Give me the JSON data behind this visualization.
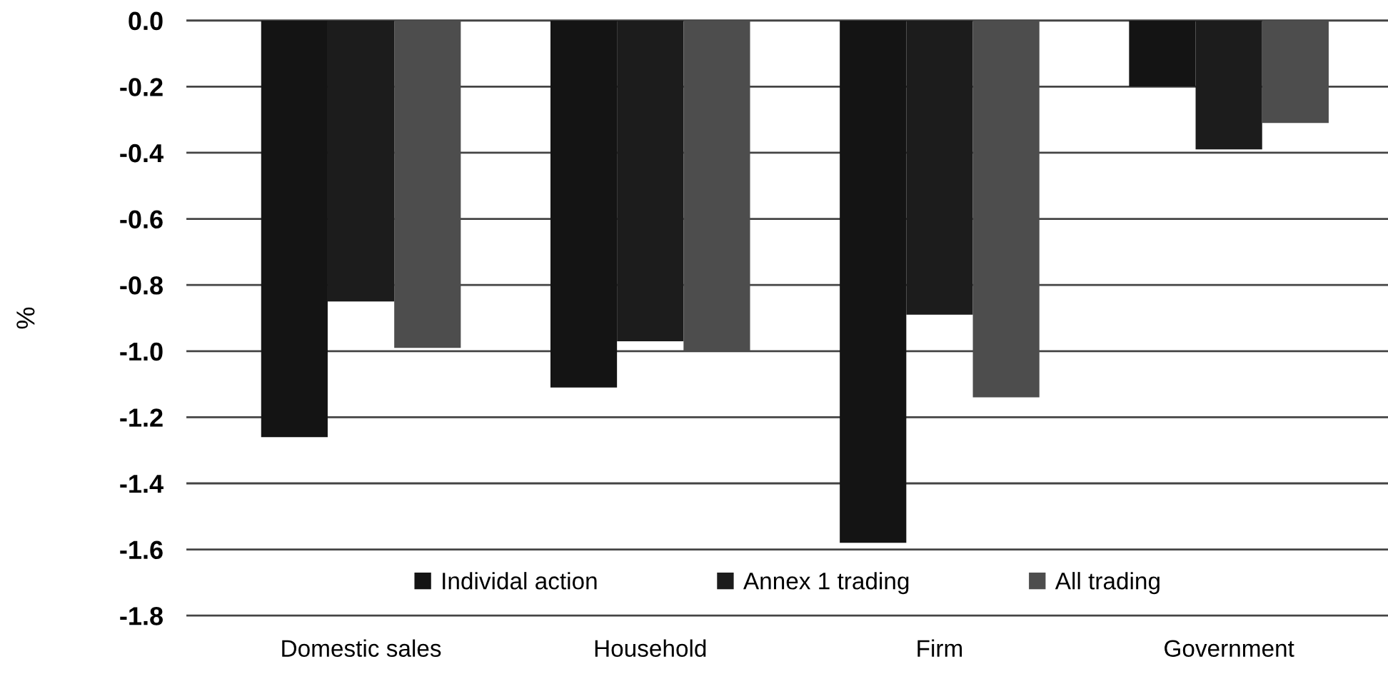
{
  "chart_data": {
    "type": "bar",
    "ylabel": "%",
    "categories": [
      "Domestic sales",
      "Household",
      "Firm",
      "Government"
    ],
    "series": [
      {
        "name": "Individal action",
        "color": "#141414",
        "values": [
          -1.26,
          -1.11,
          -1.58,
          -0.2
        ]
      },
      {
        "name": "Annex 1 trading",
        "color": "#1c1c1c",
        "values": [
          -0.85,
          -0.97,
          -0.89,
          -0.39
        ]
      },
      {
        "name": "All trading",
        "color": "#4d4d4d",
        "values": [
          -0.99,
          -1.0,
          -1.14,
          -0.31
        ]
      }
    ],
    "ylim": [
      -1.8,
      0.0
    ],
    "yticks": [
      {
        "value": 0,
        "label": "0.0"
      },
      -0.2,
      -0.4,
      -0.6,
      -0.8,
      {
        "value": -1,
        "label": "-1.0"
      },
      -1.2,
      -1.4,
      -1.6,
      -1.8
    ],
    "grid": "y",
    "legend": "bottom"
  }
}
